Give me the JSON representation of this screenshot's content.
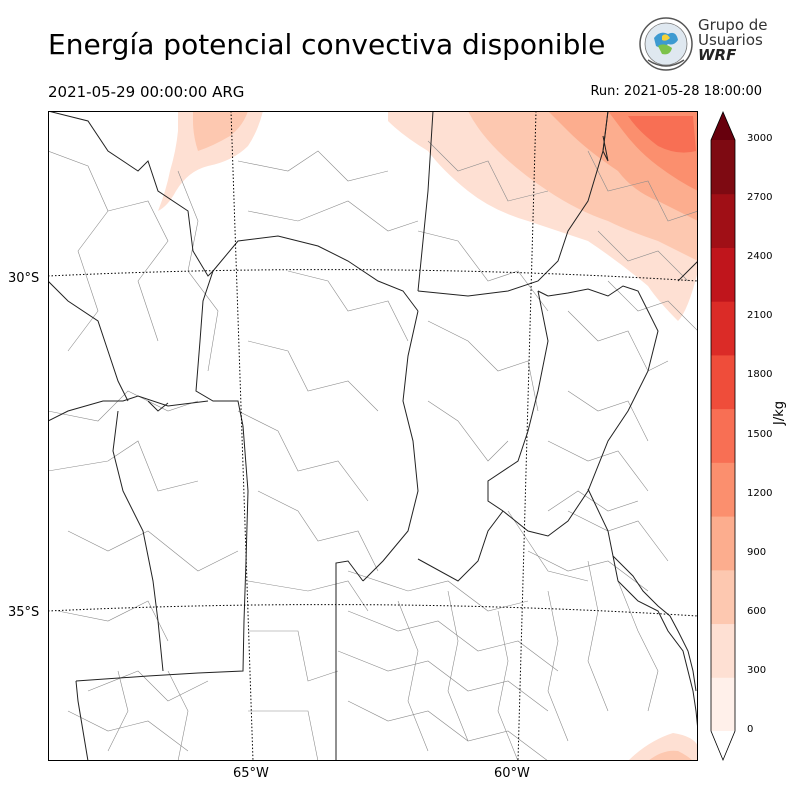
{
  "header": {
    "title": "Energía potencial convectiva disponible",
    "valid_time": "2021-05-29 00:00:00 ARG",
    "run_time": "Run: 2021-05-28 18:00:00"
  },
  "logo": {
    "line1": "Grupo de",
    "line2": "Usuarios",
    "line3": "WRF"
  },
  "map": {
    "lat_labels": [
      "30°S",
      "35°S"
    ],
    "lon_labels": [
      "65°W",
      "60°W"
    ],
    "field": "CAPE",
    "shading_area": [
      "northeast corner",
      "northern border",
      "southeast coast"
    ]
  },
  "colorbar": {
    "unit": "J/kg",
    "ticks": [
      "0",
      "300",
      "600",
      "900",
      "1200",
      "1500",
      "1800",
      "2100",
      "2400",
      "2700",
      "3000"
    ],
    "colors": [
      "#fff0ea",
      "#fee0d3",
      "#fdc8b0",
      "#fcad8e",
      "#fb8f6e",
      "#f86f54",
      "#ef4d3a",
      "#db2b27",
      "#c0151c",
      "#a00f16",
      "#7e0a12"
    ],
    "extend": "both",
    "under_color": "#ffffff",
    "over_color": "#67000d"
  }
}
